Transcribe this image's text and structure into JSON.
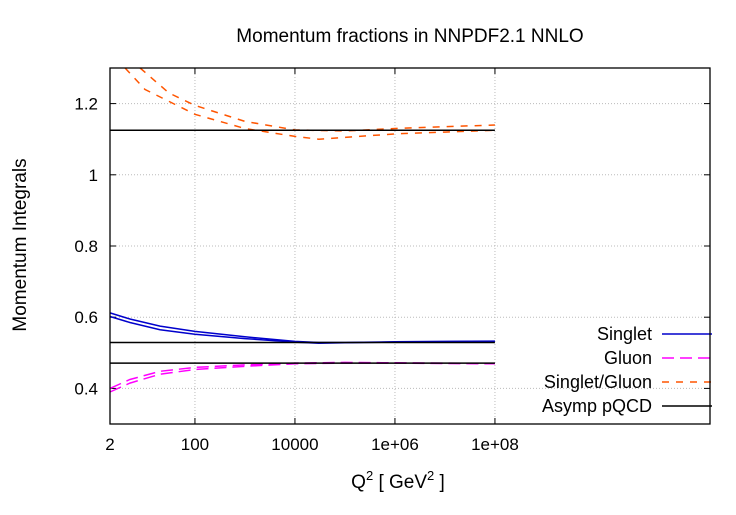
{
  "chart_data": {
    "type": "line",
    "title": "Momentum fractions in NNPDF2.1 NNLO",
    "xlabel": "Q",
    "xlabel_sup": "2",
    "xlabel_mid": " [ GeV",
    "xlabel_sup2": "2",
    "xlabel_end": " ]",
    "ylabel": "Momentum Integrals",
    "xscale": "log",
    "xlim": [
      2,
      2000000000000.0
    ],
    "ylim": [
      0.3,
      1.3
    ],
    "grid": true,
    "legend_position": "bottom-right",
    "xticks": [
      {
        "v": 2,
        "label": "2"
      },
      {
        "v": 100,
        "label": "100"
      },
      {
        "v": 10000,
        "label": "10000"
      },
      {
        "v": 1000000.0,
        "label": "1e+06"
      },
      {
        "v": 100000000.0,
        "label": "1e+08"
      }
    ],
    "yticks": [
      {
        "v": 0.4,
        "label": "0.4"
      },
      {
        "v": 0.6,
        "label": "0.6"
      },
      {
        "v": 0.8,
        "label": "0.8"
      },
      {
        "v": 1.0,
        "label": "1"
      },
      {
        "v": 1.2,
        "label": "1.2"
      }
    ],
    "series": [
      {
        "name": "Singlet",
        "color": "#0000cc",
        "dash": "",
        "lines": [
          {
            "x": [
              2,
              5,
              20,
              100,
              1000,
              10000,
              30000,
              100000.0,
              1000000.0,
              10000000.0,
              100000000.0
            ],
            "y": [
              0.612,
              0.595,
              0.575,
              0.56,
              0.545,
              0.532,
              0.529,
              0.529,
              0.531,
              0.532,
              0.533
            ]
          },
          {
            "x": [
              2,
              5,
              20,
              100,
              1000,
              10000,
              30000,
              100000.0,
              1000000.0,
              10000000.0,
              100000000.0
            ],
            "y": [
              0.602,
              0.585,
              0.565,
              0.552,
              0.54,
              0.53,
              0.527,
              0.528,
              0.53,
              0.531,
              0.532
            ]
          }
        ]
      },
      {
        "name": "Gluon",
        "color": "#ff00ff",
        "dash": "12,6",
        "lines": [
          {
            "x": [
              2,
              5,
              20,
              100,
              1000,
              10000,
              100000.0,
              1000000.0,
              10000000.0,
              100000000.0
            ],
            "y": [
              0.4,
              0.425,
              0.448,
              0.459,
              0.466,
              0.471,
              0.473,
              0.472,
              0.471,
              0.47
            ]
          },
          {
            "x": [
              2,
              5,
              20,
              100,
              1000,
              10000,
              100000.0,
              1000000.0,
              10000000.0,
              100000000.0
            ],
            "y": [
              0.39,
              0.415,
              0.44,
              0.453,
              0.462,
              0.469,
              0.471,
              0.471,
              0.47,
              0.469
            ]
          }
        ]
      },
      {
        "name": "Singlet/Gluon",
        "color": "#ff5500",
        "dash": "7,7",
        "lines": [
          {
            "x": [
              8,
              30,
              100,
              1000,
              10000,
              100000.0,
              1000000.0,
              10000000.0,
              100000000.0
            ],
            "y": [
              1.3,
              1.23,
              1.195,
              1.15,
              1.126,
              1.123,
              1.13,
              1.135,
              1.14
            ]
          },
          {
            "x": [
              4,
              10,
              100,
              1000,
              10000,
              30000,
              100000.0,
              1000000.0,
              10000000.0,
              100000000.0
            ],
            "y": [
              1.3,
              1.24,
              1.17,
              1.13,
              1.108,
              1.1,
              1.105,
              1.115,
              1.12,
              1.125
            ]
          }
        ]
      },
      {
        "name": "Asymp pQCD",
        "color": "#000000",
        "dash": "",
        "lines": [
          {
            "x": [
              2,
              100000000.0
            ],
            "y": [
              1.125,
              1.125
            ]
          },
          {
            "x": [
              2,
              100000000.0
            ],
            "y": [
              0.529,
              0.529
            ]
          },
          {
            "x": [
              2,
              100000000.0
            ],
            "y": [
              0.471,
              0.471
            ]
          }
        ]
      }
    ]
  }
}
